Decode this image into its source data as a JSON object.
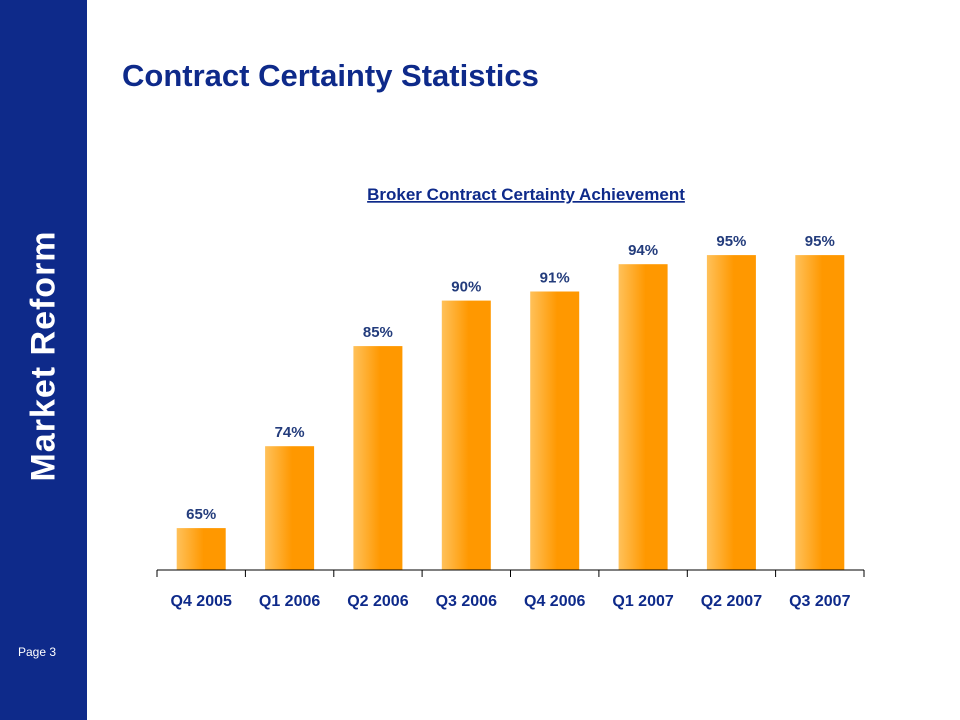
{
  "slide": {
    "brand": "Market Reform",
    "page_label": "Page 3",
    "title": "Contract Certainty Statistics"
  },
  "colors": {
    "sidebar": "#0e2a8a",
    "title": "#0e2a8a",
    "bar_light": "#ffc15a",
    "bar_dark": "#ff9800",
    "axis": "#000000"
  },
  "chart_data": {
    "type": "bar",
    "title": "Broker Contract Certainty Achievement",
    "categories": [
      "Q4 2005",
      "Q1 2006",
      "Q2 2006",
      "Q3 2006",
      "Q4 2006",
      "Q1 2007",
      "Q2 2007",
      "Q3 2007"
    ],
    "values": [
      65,
      74,
      85,
      90,
      91,
      94,
      95,
      95
    ],
    "data_labels": [
      "65%",
      "74%",
      "85%",
      "90%",
      "91%",
      "94%",
      "95%",
      "95%"
    ],
    "xlabel": "",
    "ylabel": "",
    "ylim": [
      60,
      97
    ],
    "grid": false,
    "legend": "none"
  }
}
